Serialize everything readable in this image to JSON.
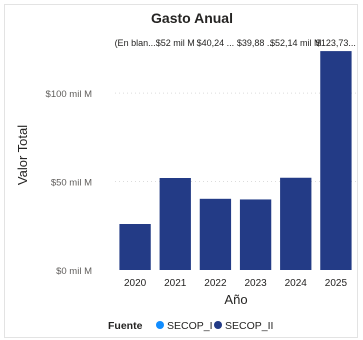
{
  "chart_data": {
    "type": "bar",
    "title": "Gasto Anual",
    "xlabel": "Año",
    "ylabel": "Valor Total",
    "categories": [
      "2020",
      "2021",
      "2022",
      "2023",
      "2024",
      "2025"
    ],
    "series": [
      {
        "name": "SECOP_II",
        "values": [
          26000000,
          52000000,
          40240000,
          39880000,
          52140000,
          123730000
        ],
        "color": "#233b86"
      }
    ],
    "data_labels": [
      "(En blan...",
      "$52 mil M",
      "$40,24 ...",
      "$39,88 ...",
      "$52,14 mil M",
      "$123,73..."
    ],
    "ylim": [
      0,
      130000000
    ],
    "yticks": [
      {
        "value": 0,
        "label": "$0 mil M"
      },
      {
        "value": 50000000,
        "label": "$50 mil M"
      },
      {
        "value": 100000000,
        "label": "$100 mil M"
      }
    ],
    "grid": true,
    "legend": {
      "title": "Fuente",
      "position": "bottom",
      "items": [
        {
          "label": "SECOP_I",
          "color": "#118dff"
        },
        {
          "label": "SECOP_II",
          "color": "#233b86"
        }
      ]
    }
  }
}
